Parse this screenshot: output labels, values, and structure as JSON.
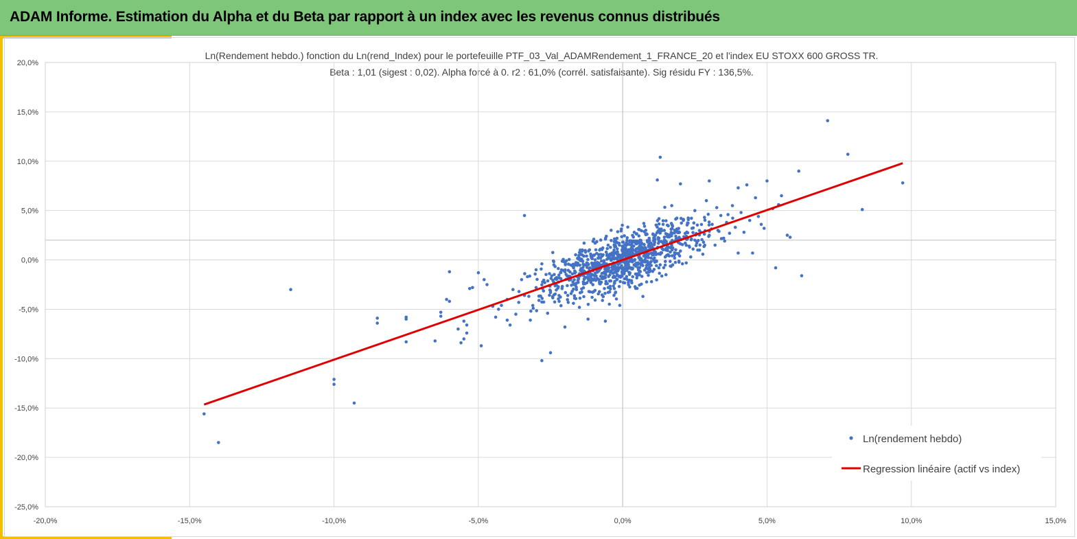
{
  "header": {
    "title": "ADAM Informe. Estimation du Alpha et du Beta par rapport à un index avec les revenus connus distribués"
  },
  "chart_data": {
    "type": "scatter",
    "title": "Ln(Rendement hebdo.) fonction du Ln(rend_Index) pour le portefeuille PTF_03_Val_ADAMRendement_1_FRANCE_20 et l'index EU STOXX 600 GROSS TR.",
    "subtitle": "Beta : 1,01 (sigest : 0,02). Alpha forcé à 0. r2 : 61,0% (corrél. satisfaisante). Sig résidu FY : 136,5%.",
    "xlim": [
      -0.2,
      0.15
    ],
    "ylim": [
      -0.25,
      0.2
    ],
    "x_ticks": [
      "-20,0%",
      "-15,0%",
      "-10,0%",
      "-5,0%",
      "0,0%",
      "5,0%",
      "10,0%",
      "15,0%"
    ],
    "y_ticks": [
      "20,0%",
      "15,0%",
      "10,0%",
      "5,0%",
      "0,0%",
      "-5,0%",
      "-10,0%",
      "-15,0%",
      "-20,0%",
      "-25,0%"
    ],
    "grid": true,
    "legend_position": "bottom-right",
    "series": [
      {
        "name": "Ln(rendement hebdo)",
        "kind": "scatter",
        "color": "#4472c4",
        "points": [
          [
            -0.145,
            -0.156
          ],
          [
            -0.14,
            -0.185
          ],
          [
            -0.115,
            -0.03
          ],
          [
            -0.1,
            -0.121
          ],
          [
            -0.1,
            -0.126
          ],
          [
            -0.093,
            -0.145
          ],
          [
            -0.085,
            -0.059
          ],
          [
            -0.085,
            -0.064
          ],
          [
            -0.075,
            -0.058
          ],
          [
            -0.075,
            -0.06
          ],
          [
            -0.075,
            -0.083
          ],
          [
            -0.065,
            -0.082
          ],
          [
            -0.063,
            -0.053
          ],
          [
            -0.063,
            -0.057
          ],
          [
            -0.061,
            -0.04
          ],
          [
            -0.06,
            -0.012
          ],
          [
            -0.06,
            -0.042
          ],
          [
            -0.057,
            -0.07
          ],
          [
            -0.056,
            -0.084
          ],
          [
            -0.055,
            -0.062
          ],
          [
            -0.055,
            -0.08
          ],
          [
            -0.054,
            -0.074
          ],
          [
            -0.054,
            -0.066
          ],
          [
            -0.053,
            -0.029
          ],
          [
            -0.052,
            -0.028
          ],
          [
            -0.05,
            -0.013
          ],
          [
            -0.049,
            -0.087
          ],
          [
            -0.048,
            -0.02
          ],
          [
            -0.047,
            -0.025
          ],
          [
            -0.045,
            -0.047
          ],
          [
            -0.044,
            -0.058
          ],
          [
            -0.043,
            -0.05
          ],
          [
            -0.042,
            -0.046
          ],
          [
            -0.04,
            -0.061
          ],
          [
            -0.04,
            -0.04
          ],
          [
            -0.039,
            -0.066
          ],
          [
            -0.038,
            -0.03
          ],
          [
            -0.037,
            -0.055
          ],
          [
            -0.036,
            -0.043
          ],
          [
            -0.035,
            -0.02
          ],
          [
            -0.034,
            -0.036
          ],
          [
            -0.034,
            0.045
          ],
          [
            -0.033,
            -0.017
          ],
          [
            -0.032,
            -0.061
          ],
          [
            -0.031,
            -0.049
          ],
          [
            -0.03,
            -0.01
          ],
          [
            -0.03,
            -0.028
          ],
          [
            -0.029,
            -0.041
          ],
          [
            -0.028,
            -0.102
          ],
          [
            -0.028,
            -0.004
          ],
          [
            -0.027,
            -0.023
          ],
          [
            -0.026,
            -0.054
          ],
          [
            -0.025,
            -0.094
          ],
          [
            -0.025,
            -0.033
          ],
          [
            -0.024,
            -0.001
          ],
          [
            -0.023,
            -0.018
          ],
          [
            -0.022,
            -0.042
          ],
          [
            -0.021,
            -0.029
          ],
          [
            -0.02,
            -0.068
          ],
          [
            -0.02,
            -0.012
          ],
          [
            -0.019,
            -0.036
          ],
          [
            -0.018,
            -0.02
          ],
          [
            -0.017,
            -0.008
          ],
          [
            -0.016,
            -0.03
          ],
          [
            -0.015,
            -0.014
          ],
          [
            -0.015,
            -0.048
          ],
          [
            -0.014,
            0.005
          ],
          [
            -0.013,
            -0.024
          ],
          [
            -0.012,
            -0.06
          ],
          [
            -0.012,
            -0.004
          ],
          [
            -0.011,
            -0.016
          ],
          [
            -0.01,
            0.021
          ],
          [
            -0.01,
            -0.032
          ],
          [
            -0.009,
            -0.01
          ],
          [
            -0.008,
            -0.024
          ],
          [
            -0.008,
            0.01
          ],
          [
            -0.007,
            -0.041
          ],
          [
            -0.007,
            -0.005
          ],
          [
            -0.006,
            -0.062
          ],
          [
            -0.006,
            -0.018
          ],
          [
            -0.005,
            0.002
          ],
          [
            -0.005,
            -0.028
          ],
          [
            -0.004,
            -0.011
          ],
          [
            -0.004,
            0.03
          ],
          [
            -0.003,
            -0.007
          ],
          [
            -0.003,
            -0.036
          ],
          [
            -0.002,
            0.008
          ],
          [
            -0.002,
            -0.02
          ],
          [
            -0.001,
            -0.003
          ],
          [
            -0.001,
            -0.046
          ],
          [
            0.0,
            0.004
          ],
          [
            0.0,
            -0.013
          ],
          [
            0.0,
            0.018
          ],
          [
            0.001,
            -0.006
          ],
          [
            0.001,
            0.01
          ],
          [
            0.002,
            -0.025
          ],
          [
            0.002,
            0.002
          ],
          [
            0.003,
            0.012
          ],
          [
            0.003,
            -0.009
          ],
          [
            0.004,
            0.005
          ],
          [
            0.004,
            0.028
          ],
          [
            0.005,
            -0.016
          ],
          [
            0.005,
            0.008
          ],
          [
            0.006,
            0.0
          ],
          [
            0.006,
            0.02
          ],
          [
            0.007,
            -0.037
          ],
          [
            0.007,
            0.011
          ],
          [
            0.008,
            0.004
          ],
          [
            0.008,
            0.03
          ],
          [
            0.009,
            -0.01
          ],
          [
            0.009,
            0.015
          ],
          [
            0.01,
            0.007
          ],
          [
            0.01,
            -0.022
          ],
          [
            0.011,
            0.023
          ],
          [
            0.011,
            0.002
          ],
          [
            0.012,
            0.081
          ],
          [
            0.012,
            0.012
          ],
          [
            0.013,
            0.104
          ],
          [
            0.013,
            -0.005
          ],
          [
            0.014,
            0.018
          ],
          [
            0.014,
            0.036
          ],
          [
            0.015,
            0.01
          ],
          [
            0.015,
            -0.015
          ],
          [
            0.016,
            0.025
          ],
          [
            0.017,
            0.015
          ],
          [
            0.017,
            0.055
          ],
          [
            0.018,
            0.002
          ],
          [
            0.018,
            0.03
          ],
          [
            0.019,
            0.019
          ],
          [
            0.02,
            0.077
          ],
          [
            0.02,
            0.009
          ],
          [
            0.021,
            0.04
          ],
          [
            0.022,
            0.022
          ],
          [
            0.022,
            -0.003
          ],
          [
            0.023,
            0.014
          ],
          [
            0.024,
            0.032
          ],
          [
            0.025,
            0.02
          ],
          [
            0.025,
            0.05
          ],
          [
            0.026,
            0.01
          ],
          [
            0.027,
            0.028
          ],
          [
            0.028,
            0.018
          ],
          [
            0.029,
            0.06
          ],
          [
            0.03,
            0.025
          ],
          [
            0.03,
            0.08
          ],
          [
            0.031,
            0.036
          ],
          [
            0.032,
            0.015
          ],
          [
            0.033,
            0.03
          ],
          [
            0.034,
            0.045
          ],
          [
            0.035,
            0.022
          ],
          [
            0.036,
            0.038
          ],
          [
            0.037,
            0.027
          ],
          [
            0.038,
            0.055
          ],
          [
            0.039,
            0.033
          ],
          [
            0.04,
            0.073
          ],
          [
            0.04,
            0.007
          ],
          [
            0.041,
            0.048
          ],
          [
            0.042,
            0.028
          ],
          [
            0.043,
            0.076
          ],
          [
            0.044,
            0.04
          ],
          [
            0.045,
            0.007
          ],
          [
            0.046,
            0.063
          ],
          [
            0.047,
            0.044
          ],
          [
            0.048,
            0.036
          ],
          [
            0.049,
            0.032
          ],
          [
            0.05,
            0.08
          ],
          [
            0.052,
            0.052
          ],
          [
            0.053,
            -0.008
          ],
          [
            0.054,
            0.056
          ],
          [
            0.055,
            0.065
          ],
          [
            0.057,
            0.025
          ],
          [
            0.058,
            0.023
          ],
          [
            0.061,
            0.09
          ],
          [
            0.062,
            -0.016
          ],
          [
            0.071,
            0.141
          ],
          [
            0.078,
            0.107
          ],
          [
            0.083,
            0.051
          ],
          [
            0.097,
            0.078
          ]
        ]
      },
      {
        "name": "Regression linéaire (actif vs index)",
        "kind": "line",
        "color": "#e00000",
        "points": [
          [
            -0.145,
            -0.1465
          ],
          [
            0.097,
            0.098
          ]
        ]
      }
    ]
  }
}
